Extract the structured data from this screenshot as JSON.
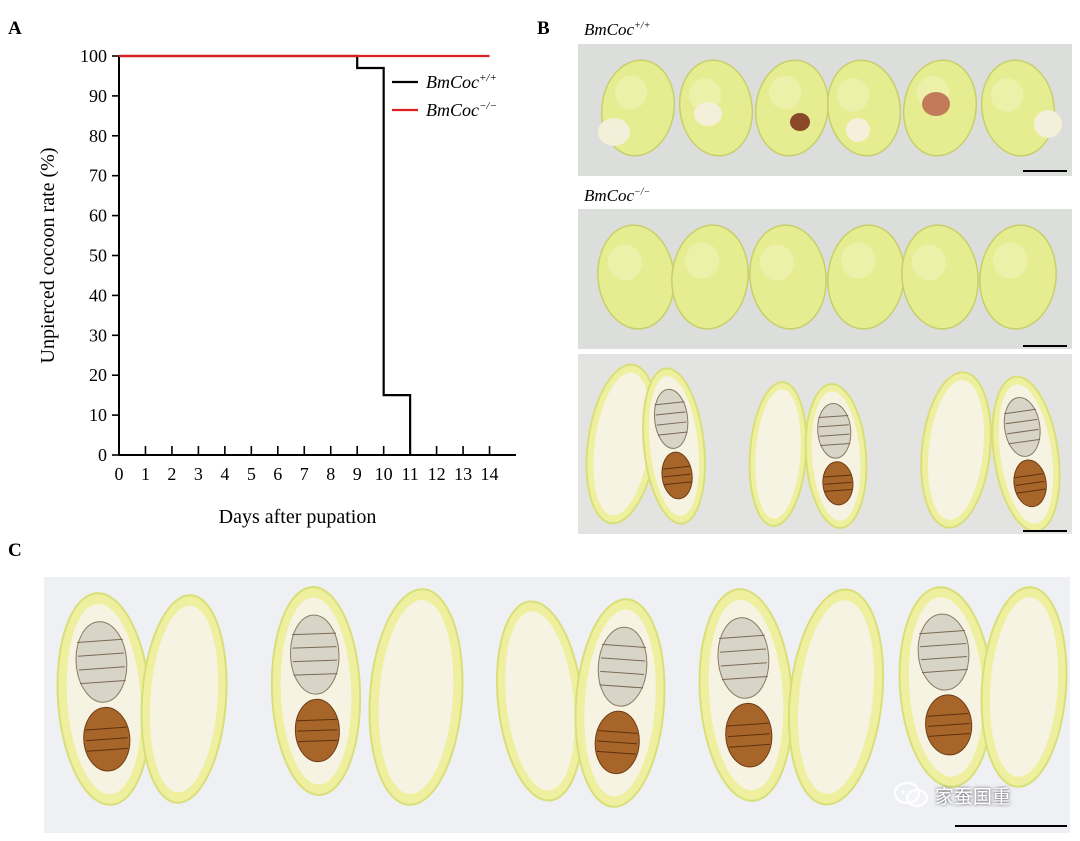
{
  "panels": {
    "a": "A",
    "b": "B",
    "c": "C"
  },
  "chart_data": {
    "type": "line",
    "step": true,
    "title": "",
    "xlabel": "Days after pupation",
    "ylabel": "Unpierced cocoon rate (%)",
    "xlim": [
      0,
      15
    ],
    "ylim": [
      0,
      100
    ],
    "x_ticks": [
      0,
      1,
      2,
      3,
      4,
      5,
      6,
      7,
      8,
      9,
      10,
      11,
      12,
      13,
      14
    ],
    "y_ticks": [
      0,
      10,
      20,
      30,
      40,
      50,
      60,
      70,
      80,
      90,
      100
    ],
    "grid": false,
    "legend_position": "top-right",
    "series": [
      {
        "name": "BmCoc+/+",
        "name_base": "BmCoc",
        "name_sup": "+/+",
        "color": "#000000",
        "x": [
          0,
          9,
          9,
          10,
          10,
          11,
          11
        ],
        "y": [
          100,
          100,
          97,
          97,
          15,
          15,
          0
        ]
      },
      {
        "name": "BmCoc−/−",
        "name_base": "BmCoc",
        "name_sup": "−/−",
        "color": "#e02020",
        "x": [
          0,
          14
        ],
        "y": [
          100,
          100
        ]
      }
    ]
  },
  "photos": {
    "b_wt_label_base": "BmCoc",
    "b_wt_label_sup": "+/+",
    "b_ko_label_base": "BmCoc",
    "b_ko_label_sup": "−/−",
    "cocoon_color": "#e6ec90",
    "background_color": "#dcdedc"
  },
  "watermark": {
    "text": "家蚕国重",
    "icon": "wechat-icon"
  }
}
